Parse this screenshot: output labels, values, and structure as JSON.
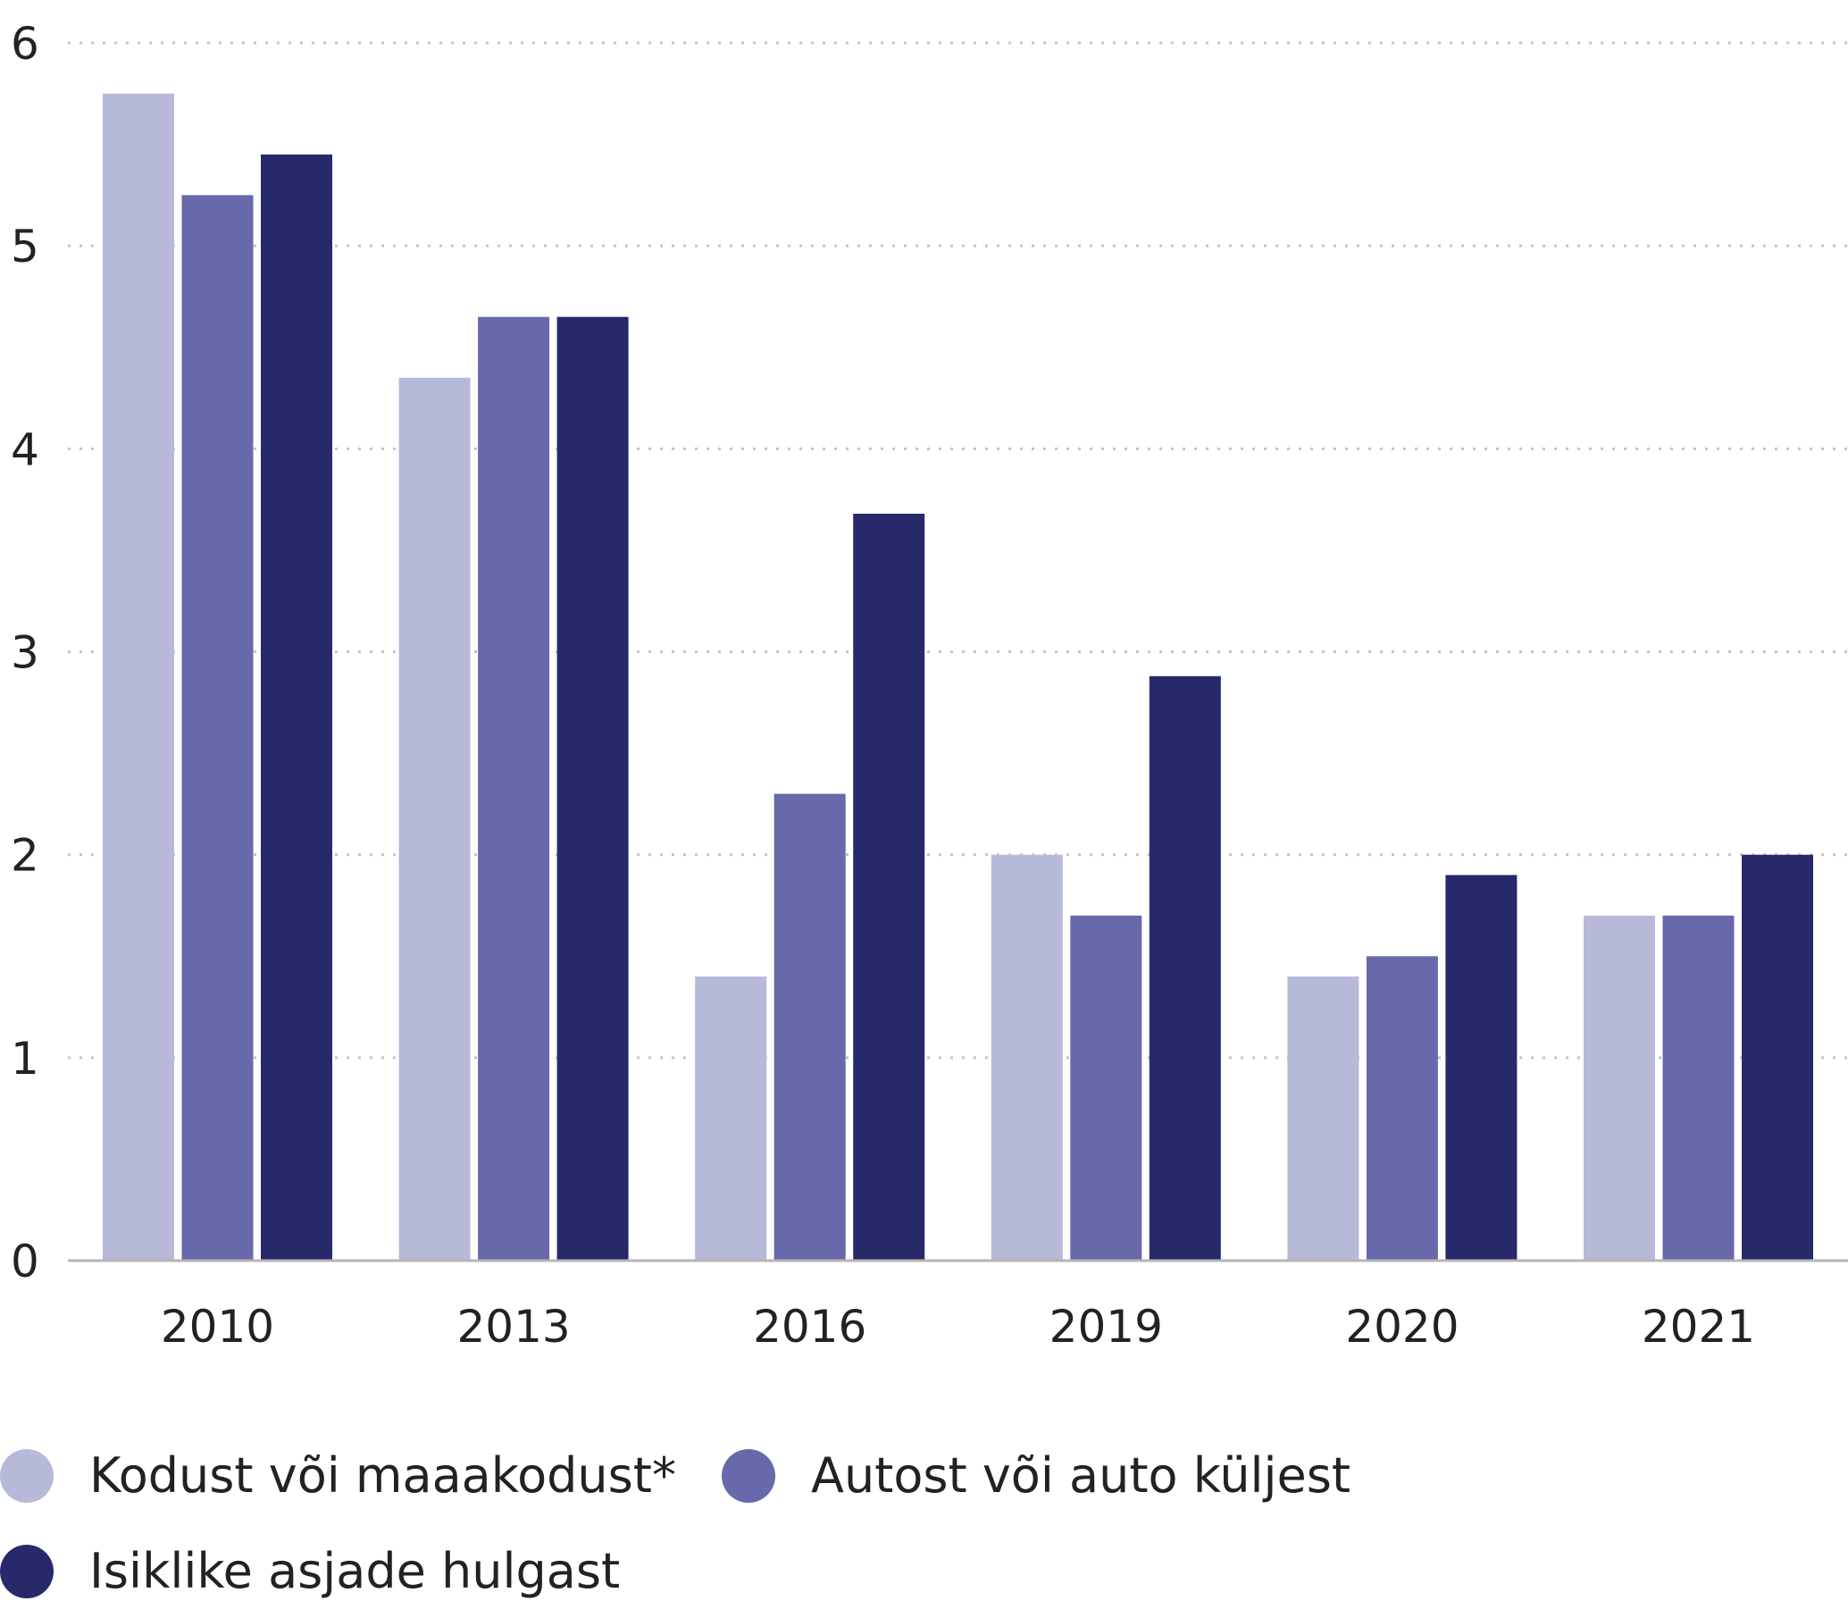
{
  "chart_data": {
    "type": "bar",
    "title": "",
    "xlabel": "",
    "ylabel": "",
    "categories": [
      "2010",
      "2013",
      "2016",
      "2019",
      "2020",
      "2021"
    ],
    "ylim": [
      0,
      6
    ],
    "yticks": [
      "0",
      "1",
      "2",
      "3",
      "4",
      "5",
      "6"
    ],
    "grid": true,
    "legend_position": "bottom-left",
    "series": [
      {
        "name": "Kodust või maaakodust*",
        "color": "#b7b9d8",
        "values": [
          5.75,
          4.35,
          1.4,
          2.0,
          1.4,
          1.7
        ]
      },
      {
        "name": "Autost või auto küljest",
        "color": "#6769ab",
        "values": [
          5.25,
          4.65,
          2.3,
          1.7,
          1.5,
          1.7
        ]
      },
      {
        "name": "Isiklike asjade hulgast",
        "color": "#28296b",
        "values": [
          5.45,
          4.65,
          3.68,
          2.88,
          1.9,
          2.0
        ]
      }
    ]
  }
}
